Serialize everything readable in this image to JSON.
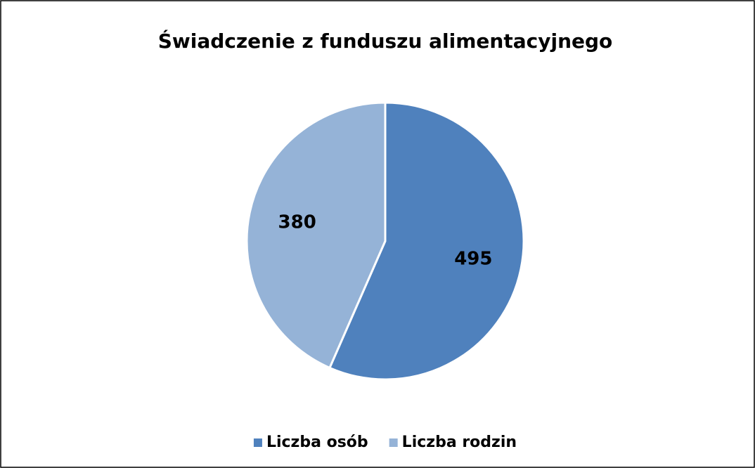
{
  "chart_data": {
    "type": "pie",
    "title": "Świadczenie z funduszu alimentacyjnego",
    "categories": [
      "Liczba osób",
      "Liczba rodzin"
    ],
    "values": [
      495,
      380
    ],
    "colors": [
      "#4f81bd",
      "#95b3d7"
    ],
    "legend": "bottom"
  }
}
